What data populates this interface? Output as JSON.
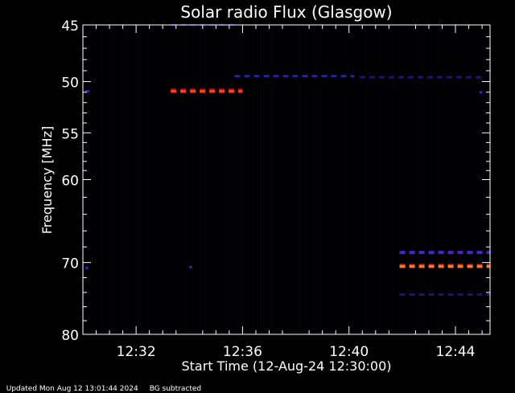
{
  "chart_data": {
    "type": "heatmap",
    "title": "Solar radio Flux (Glasgow)",
    "xlabel": "Start Time (12-Aug-24 12:30:00)",
    "ylabel": "Frequency [MHz]",
    "x_range_minutes": [
      0,
      15.3
    ],
    "y_range_mhz": [
      45,
      80
    ],
    "y_scale": "log",
    "x_ticks": [
      {
        "label": "12:32",
        "minute": 2
      },
      {
        "label": "12:36",
        "minute": 6
      },
      {
        "label": "12:40",
        "minute": 10
      },
      {
        "label": "12:44",
        "minute": 14
      }
    ],
    "y_ticks": [
      {
        "label": "45",
        "mhz": 45
      },
      {
        "label": "50",
        "mhz": 50
      },
      {
        "label": "55",
        "mhz": 55
      },
      {
        "label": "60",
        "mhz": 60
      },
      {
        "label": "70",
        "mhz": 70
      },
      {
        "label": "80",
        "mhz": 80
      }
    ],
    "y_minor_ticks_mhz": [
      46,
      47,
      48,
      49,
      51,
      52,
      53,
      54,
      56,
      57,
      58,
      59,
      62,
      64,
      66,
      68,
      72,
      74,
      76,
      78
    ],
    "x_minor_ticks_minutes": [
      0.5,
      1,
      1.5,
      2.5,
      3,
      3.5,
      4.5,
      5,
      5.5,
      6.5,
      7,
      7.5,
      8.5,
      9,
      9.5,
      10.5,
      11,
      11.5,
      12.5,
      13,
      13.5,
      14.5,
      15
    ],
    "background_color": "#000000",
    "bands": [
      {
        "freq": 50.9,
        "start": 3.3,
        "end": 6.0,
        "color": "#ff4020",
        "intensity": "high"
      },
      {
        "freq": 50.9,
        "start": 0.1,
        "end": 0.25,
        "color": "#3020c0",
        "intensity": "low"
      },
      {
        "freq": 49.5,
        "start": 5.7,
        "end": 10.2,
        "color": "#2a1fb8",
        "intensity": "low"
      },
      {
        "freq": 45.0,
        "start": 3.3,
        "end": 5.8,
        "color": "#181066",
        "intensity": "faint"
      },
      {
        "freq": 49.6,
        "start": 10.4,
        "end": 15.0,
        "color": "#1a1280",
        "intensity": "faint"
      },
      {
        "freq": 68.7,
        "start": 11.9,
        "end": 15.3,
        "color": "#4a20d8",
        "intensity": "medium"
      },
      {
        "freq": 70.5,
        "start": 11.9,
        "end": 15.3,
        "color": "#ff7a20",
        "intensity": "high"
      },
      {
        "freq": 74.3,
        "start": 11.9,
        "end": 15.3,
        "color": "#1c147a",
        "intensity": "faint"
      },
      {
        "freq": 70.6,
        "start": 4.0,
        "end": 4.1,
        "color": "#3a22d0",
        "intensity": "low"
      },
      {
        "freq": 70.7,
        "start": 0.1,
        "end": 0.2,
        "color": "#3a22d0",
        "intensity": "low"
      },
      {
        "freq": 51.0,
        "start": 14.9,
        "end": 15.0,
        "color": "#3a22d0",
        "intensity": "low"
      }
    ]
  },
  "footer": {
    "updated": "Updated Mon Aug 12 13:01:44 2024",
    "note": "BG subtracted"
  },
  "colors": {
    "axis": "#ffffff",
    "text": "#ffffff"
  }
}
